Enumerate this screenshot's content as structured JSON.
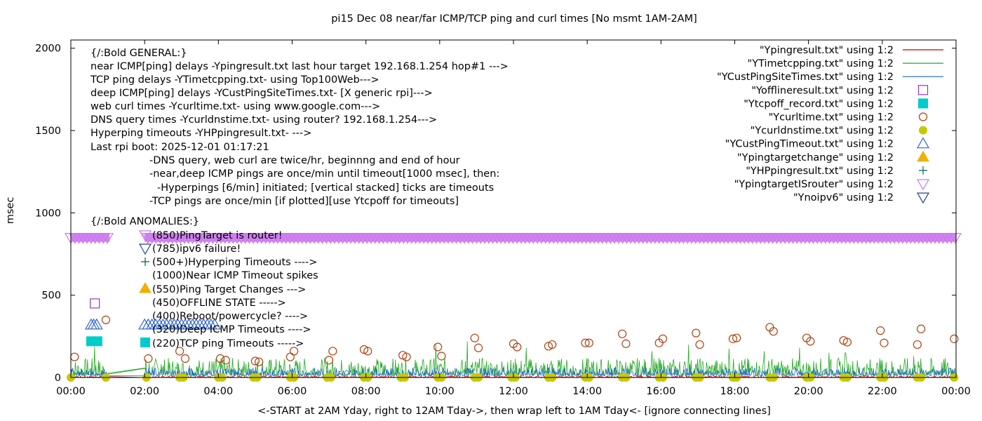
{
  "chart_data": {
    "type": "line",
    "title": "pi15 Dec 08  near/far ICMP/TCP ping and curl times [No msmt 1AM-2AM]",
    "xlabel": "<-START at 2AM Yday, right to 12AM Tday->, then wrap left to 1AM Tday<- [ignore connecting lines]",
    "ylabel": "msec",
    "xlim": [
      0,
      24
    ],
    "ylim": [
      0,
      2050
    ],
    "x_ticks": [
      "00:00",
      "02:00",
      "04:00",
      "06:00",
      "08:00",
      "10:00",
      "12:00",
      "14:00",
      "16:00",
      "18:00",
      "20:00",
      "22:00",
      "00:00"
    ],
    "y_ticks": [
      0,
      500,
      1000,
      1500,
      2000
    ],
    "grid": false,
    "legend_position": "top-right",
    "legend": [
      {
        "label": "\"Ypingresult.txt\" using 1:2",
        "marker": "line",
        "color": "#cc0000"
      },
      {
        "label": "\"YTimetcpping.txt\" using 1:2",
        "marker": "line",
        "color": "#22aa22"
      },
      {
        "label": "\"YCustPingSiteTimes.txt\" using 1:2",
        "marker": "line",
        "color": "#1a66cc"
      },
      {
        "label": "\"Yofflineresult.txt\" using 1:2",
        "marker": "open-square",
        "color": "#9933cc"
      },
      {
        "label": "\"Ytcpoff_record.txt\" using 1:2",
        "marker": "filled-square",
        "color": "#00cccc"
      },
      {
        "label": "\"Ycurltime.txt\" using 1:2",
        "marker": "open-circle",
        "color": "#b04010"
      },
      {
        "label": "\"Ycurldnstime.txt\" using 1:2",
        "marker": "filled-circle",
        "color": "#c8c800"
      },
      {
        "label": "\"YCustPingTimeout.txt\" using 1:2",
        "marker": "open-triangle-up",
        "color": "#3366cc"
      },
      {
        "label": "\"Ypingtargetchange\" using 1:2",
        "marker": "filled-triangle-up",
        "color": "#f0b000"
      },
      {
        "label": "\"YHPpingresult.txt\" using 1:2",
        "marker": "plus",
        "color": "#006644"
      },
      {
        "label": "\"YpingtargetISrouter\" using 1:2",
        "marker": "open-triangle-down",
        "color": "#cc77ee"
      },
      {
        "label": "\"Ynoipv6\" using 1:2",
        "marker": "open-triangle-down",
        "color": "#224488"
      }
    ],
    "notes": [
      "{/:Bold GENERAL:}",
      "near ICMP[ping] delays -Ypingresult.txt last hour target 192.168.1.254 hop#1 --->",
      "TCP ping delays -YTimetcpping.txt- using Top100Web--->",
      "deep ICMP[ping] delays -YCustPingSiteTimes.txt- [X generic rpi]--->",
      "web curl times -Ycurltime.txt- using www.google.com--->",
      "DNS query times -Ycurldnstime.txt- using router? 192.168.1.254--->",
      "Hyperping timeouts -YHPpingresult.txt- --->",
      "Last rpi boot: 2025-12-01 01:17:21",
      "-DNS query, web curl are twice/hr, beginnng and end of hour",
      "-near,deep ICMP pings are once/min until timeout[1000 msec], then:",
      "-Hyperpings [6/min] initiated; [vertical stacked] ticks are timeouts",
      "-TCP pings are once/min [if plotted][use Ytcpoff for timeouts]",
      "{/:Bold ANOMALIES:}",
      "(850)PingTarget is router!",
      "(785)ipv6 failure!",
      "(500+)Hyperping Timeouts ---->",
      "(1000)Near ICMP Timeout spikes",
      "(550)Ping Target Changes --->",
      "(450)OFFLINE STATE ----->",
      "(400)Reboot/powercycle? ---->",
      "(320)Deep ICMP Timeouts ---->",
      "(220)TCP ping Timeouts ----->"
    ],
    "anomaly_y_values": [
      850,
      785,
      500,
      1000,
      550,
      450,
      400,
      320,
      220
    ],
    "series": [
      {
        "name": "\"Ycurltime.txt\" using 1:2",
        "marker": "open-circle",
        "x": [
          0.1,
          0.95,
          2.1,
          2.95,
          3.1,
          4.05,
          4.2,
          5.0,
          5.1,
          5.95,
          6.05,
          7.0,
          7.1,
          7.95,
          8.05,
          9.0,
          9.1,
          9.95,
          10.05,
          10.95,
          11.05,
          12.0,
          12.1,
          12.95,
          13.05,
          13.95,
          14.05,
          14.95,
          15.05,
          15.95,
          16.05,
          16.95,
          17.05,
          17.95,
          18.05,
          18.95,
          19.05,
          19.95,
          20.05,
          20.95,
          21.05,
          21.95,
          22.05,
          22.95,
          23.05,
          23.95
        ],
        "y": [
          125,
          350,
          115,
          160,
          115,
          115,
          105,
          100,
          95,
          125,
          160,
          105,
          160,
          170,
          160,
          135,
          125,
          185,
          130,
          240,
          180,
          205,
          185,
          190,
          200,
          210,
          210,
          265,
          205,
          210,
          235,
          270,
          200,
          235,
          240,
          305,
          280,
          240,
          220,
          225,
          215,
          285,
          210,
          200,
          295,
          235
        ]
      },
      {
        "name": "\"Ycurldnstime.txt\" using 1:2",
        "marker": "filled-circle",
        "x": [
          0.0,
          0.95,
          2.05,
          2.95,
          3.05,
          4.0,
          4.1,
          4.95,
          5.05,
          5.95,
          6.05,
          6.95,
          7.05,
          7.95,
          8.05,
          8.95,
          9.05,
          9.95,
          10.05,
          10.95,
          11.05,
          11.95,
          12.05,
          12.95,
          13.05,
          13.95,
          14.05,
          14.95,
          15.05,
          15.95,
          16.05,
          16.95,
          17.05,
          17.95,
          18.05,
          18.95,
          19.05,
          19.95,
          20.05,
          20.95,
          21.05,
          21.95,
          22.05,
          22.95,
          23.05,
          23.95
        ],
        "y": [
          0,
          0,
          0,
          0,
          0,
          0,
          0,
          0,
          0,
          0,
          0,
          0,
          0,
          0,
          0,
          0,
          0,
          0,
          0,
          0,
          0,
          0,
          0,
          0,
          0,
          0,
          0,
          0,
          0,
          0,
          0,
          0,
          0,
          0,
          0,
          0,
          0,
          0,
          0,
          0,
          0,
          0,
          0,
          0,
          0,
          0
        ]
      },
      {
        "name": "\"Yofflineresult.txt\" using 1:2",
        "marker": "open-square",
        "x": [
          0.65
        ],
        "y": [
          450
        ]
      },
      {
        "name": "\"Ytcpoff_record.txt\" using 1:2",
        "marker": "filled-square",
        "x": [
          0.55,
          0.72
        ],
        "y": [
          220,
          220
        ]
      },
      {
        "name": "\"YCustPingTimeout.txt\" using 1:2",
        "marker": "open-triangle-up",
        "x": [
          0.55,
          0.62,
          0.7,
          2.0,
          2.1,
          2.2,
          2.3,
          2.4,
          2.5,
          2.6,
          2.7,
          2.8,
          2.9,
          3.0,
          3.1,
          3.2,
          3.3,
          3.4,
          3.5,
          3.6,
          3.7,
          3.8,
          3.9
        ],
        "y": [
          320,
          320,
          320,
          320,
          320,
          320,
          320,
          320,
          320,
          320,
          320,
          320,
          320,
          320,
          320,
          320,
          320,
          320,
          320,
          320,
          320,
          320,
          320
        ]
      },
      {
        "name": "\"YpingtargetISrouter\" using 1:2",
        "marker": "open-triangle-down",
        "x_range": [
          0,
          24
        ],
        "x_gap": [
          1.05,
          2.0
        ],
        "y": 850
      }
    ],
    "line_series": [
      {
        "name": "\"YTimetcpping.txt\" using 1:2",
        "typical_range": [
          10,
          120
        ],
        "spikes": [
          [
            0.65,
            185
          ],
          [
            2.45,
            80
          ],
          [
            9.9,
            200
          ],
          [
            10.75,
            220
          ],
          [
            11.85,
            95
          ],
          [
            12.35,
            180
          ],
          [
            13.0,
            80
          ],
          [
            15.75,
            160
          ],
          [
            16.75,
            200
          ],
          [
            17.85,
            175
          ],
          [
            18.8,
            160
          ],
          [
            19.75,
            180
          ],
          [
            20.55,
            150
          ],
          [
            21.0,
            150
          ],
          [
            22.85,
            130
          ]
        ]
      },
      {
        "name": "\"YCustPingSiteTimes.txt\" using 1:2",
        "typical_range": [
          10,
          60
        ]
      },
      {
        "name": "\"Ypingresult.txt\" using 1:2",
        "typical_range": [
          0,
          10
        ]
      }
    ]
  }
}
